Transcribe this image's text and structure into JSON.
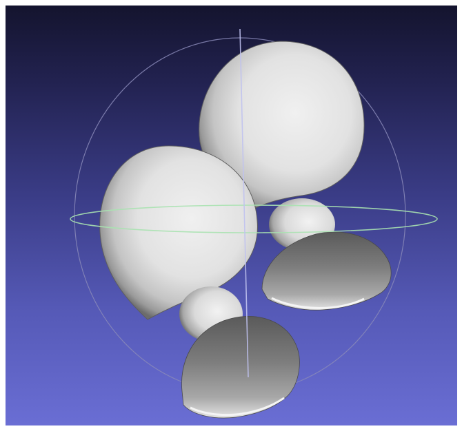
{
  "viewer": {
    "background_top": "#14142e",
    "background_bottom": "#6a6ed4",
    "trackball_ring_color": "#8a8ab8",
    "horizontal_ring_color": "#a8e2b0",
    "vertical_axis_color": "#c0c2f0",
    "mesh_color": "#dcdcdc"
  },
  "scene": {
    "objects": [
      {
        "name": "sphere-large-back",
        "shape": "sphere"
      },
      {
        "name": "sphere-small-back",
        "shape": "sphere"
      },
      {
        "name": "cap-back",
        "shape": "dome"
      },
      {
        "name": "sphere-large-front",
        "shape": "sphere"
      },
      {
        "name": "sphere-small-front",
        "shape": "sphere"
      },
      {
        "name": "cap-front",
        "shape": "dome"
      }
    ]
  }
}
